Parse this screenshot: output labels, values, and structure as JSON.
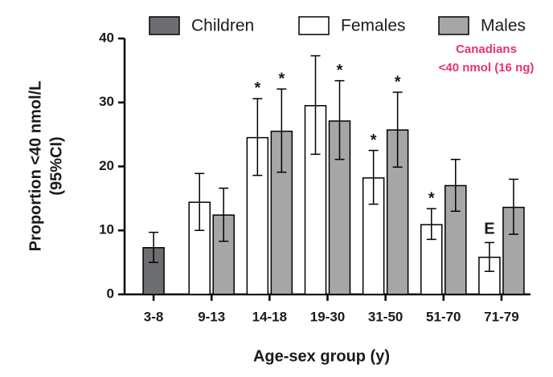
{
  "chart_data": {
    "type": "bar",
    "x_label": "Age-sex group (y)",
    "y_label": [
      "Proportion <40 nmol/L",
      "(95%CI)"
    ],
    "annotation": [
      "Canadians",
      "<40 nmol (16 ng)"
    ],
    "categories": [
      "3-8",
      "9-13",
      "14-18",
      "19-30",
      "31-50",
      "51-70",
      "71-79"
    ],
    "series": [
      {
        "name": "Children",
        "color": "#6d6e71",
        "values": [
          7.3,
          null,
          null,
          null,
          null,
          null,
          null
        ],
        "ci": [
          [
            5.0,
            9.7
          ],
          null,
          null,
          null,
          null,
          null,
          null
        ],
        "flags": [
          null,
          null,
          null,
          null,
          null,
          null,
          null
        ]
      },
      {
        "name": "Females",
        "color": "#ffffff",
        "values": [
          null,
          14.4,
          24.5,
          29.5,
          18.2,
          10.9,
          5.8
        ],
        "ci": [
          null,
          [
            10.0,
            18.9
          ],
          [
            18.6,
            30.6
          ],
          [
            21.9,
            37.3
          ],
          [
            14.1,
            22.5
          ],
          [
            8.6,
            13.4
          ],
          [
            3.6,
            8.1
          ]
        ],
        "flags": [
          null,
          null,
          "*",
          null,
          "*",
          "*",
          "E"
        ]
      },
      {
        "name": "Males",
        "color": "#a6a6a6",
        "values": [
          null,
          12.4,
          25.5,
          27.1,
          25.7,
          17.0,
          13.6
        ],
        "ci": [
          null,
          [
            8.3,
            16.6
          ],
          [
            19.1,
            32.1
          ],
          [
            21.1,
            33.4
          ],
          [
            19.9,
            31.6
          ],
          [
            13.0,
            21.1
          ],
          [
            9.4,
            18.0
          ]
        ],
        "flags": [
          null,
          null,
          "*",
          "*",
          "*",
          null,
          null
        ]
      }
    ],
    "ylim": [
      0,
      40
    ],
    "yticks": [
      0,
      10,
      20,
      30,
      40
    ],
    "grid": false
  }
}
